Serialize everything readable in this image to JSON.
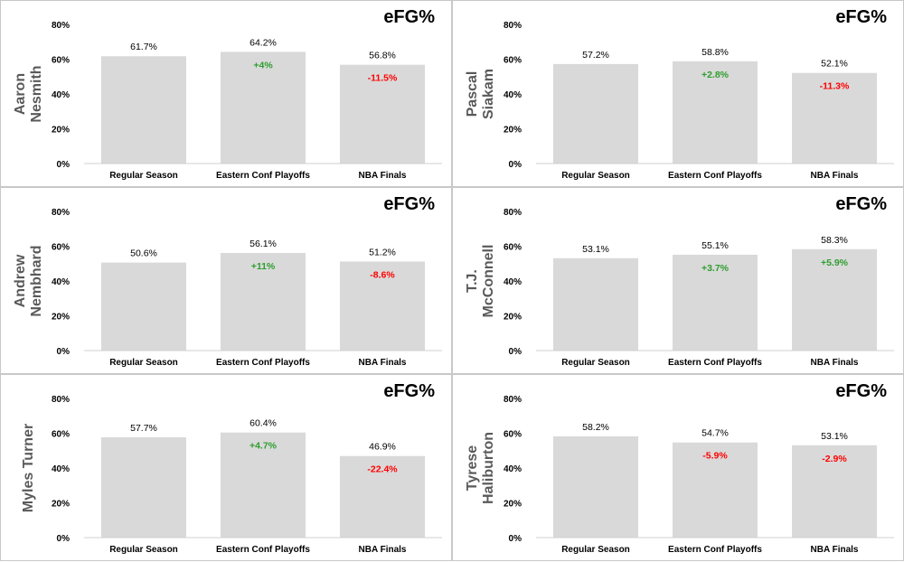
{
  "colors": {
    "bar": "#d9d9d9",
    "axis": "#d0d0d0",
    "positive": "#2e9e2e",
    "negative": "#ff0000"
  },
  "chart_data": [
    {
      "type": "bar",
      "title": "eFG%",
      "player": [
        "Aaron",
        "Nesmith"
      ],
      "categories": [
        "Regular Season",
        "Eastern Conf Playoffs",
        "NBA Finals"
      ],
      "values": [
        61.7,
        64.2,
        56.8
      ],
      "value_labels": [
        "61.7%",
        "64.2%",
        "56.8%"
      ],
      "deltas": [
        "",
        "+4%",
        "-11.5%"
      ],
      "delta_signs": [
        "",
        "pos",
        "neg"
      ],
      "ylim": [
        0,
        80
      ],
      "yticks": [
        "0%",
        "20%",
        "40%",
        "60%",
        "80%"
      ]
    },
    {
      "type": "bar",
      "title": "eFG%",
      "player": [
        "Pascal",
        "Siakam"
      ],
      "categories": [
        "Regular Season",
        "Eastern Conf Playoffs",
        "NBA Finals"
      ],
      "values": [
        57.2,
        58.8,
        52.1
      ],
      "value_labels": [
        "57.2%",
        "58.8%",
        "52.1%"
      ],
      "deltas": [
        "",
        "+2.8%",
        "-11.3%"
      ],
      "delta_signs": [
        "",
        "pos",
        "neg"
      ],
      "ylim": [
        0,
        80
      ],
      "yticks": [
        "0%",
        "20%",
        "40%",
        "60%",
        "80%"
      ]
    },
    {
      "type": "bar",
      "title": "eFG%",
      "player": [
        "Andrew",
        "Nembhard"
      ],
      "categories": [
        "Regular Season",
        "Eastern Conf Playoffs",
        "NBA Finals"
      ],
      "values": [
        50.6,
        56.1,
        51.2
      ],
      "value_labels": [
        "50.6%",
        "56.1%",
        "51.2%"
      ],
      "deltas": [
        "",
        "+11%",
        "-8.6%"
      ],
      "delta_signs": [
        "",
        "pos",
        "neg"
      ],
      "ylim": [
        0,
        80
      ],
      "yticks": [
        "0%",
        "20%",
        "40%",
        "60%",
        "80%"
      ]
    },
    {
      "type": "bar",
      "title": "eFG%",
      "player": [
        "T.J.",
        "McConnell"
      ],
      "categories": [
        "Regular Season",
        "Eastern Conf Playoffs",
        "NBA Finals"
      ],
      "values": [
        53.1,
        55.1,
        58.3
      ],
      "value_labels": [
        "53.1%",
        "55.1%",
        "58.3%"
      ],
      "deltas": [
        "",
        "+3.7%",
        "+5.9%"
      ],
      "delta_signs": [
        "",
        "pos",
        "pos"
      ],
      "ylim": [
        0,
        80
      ],
      "yticks": [
        "0%",
        "20%",
        "40%",
        "60%",
        "80%"
      ]
    },
    {
      "type": "bar",
      "title": "eFG%",
      "player": [
        "Myles Turner"
      ],
      "categories": [
        "Regular Season",
        "Eastern Conf Playoffs",
        "NBA Finals"
      ],
      "values": [
        57.7,
        60.4,
        46.9
      ],
      "value_labels": [
        "57.7%",
        "60.4%",
        "46.9%"
      ],
      "deltas": [
        "",
        "+4.7%",
        "-22.4%"
      ],
      "delta_signs": [
        "",
        "pos",
        "neg"
      ],
      "ylim": [
        0,
        80
      ],
      "yticks": [
        "0%",
        "20%",
        "40%",
        "60%",
        "80%"
      ]
    },
    {
      "type": "bar",
      "title": "eFG%",
      "player": [
        "Tyrese",
        "Haliburton"
      ],
      "categories": [
        "Regular Season",
        "Eastern Conf Playoffs",
        "NBA Finals"
      ],
      "values": [
        58.2,
        54.7,
        53.1
      ],
      "value_labels": [
        "58.2%",
        "54.7%",
        "53.1%"
      ],
      "deltas": [
        "",
        "-5.9%",
        "-2.9%"
      ],
      "delta_signs": [
        "",
        "neg",
        "neg"
      ],
      "ylim": [
        0,
        80
      ],
      "yticks": [
        "0%",
        "20%",
        "40%",
        "60%",
        "80%"
      ]
    }
  ]
}
